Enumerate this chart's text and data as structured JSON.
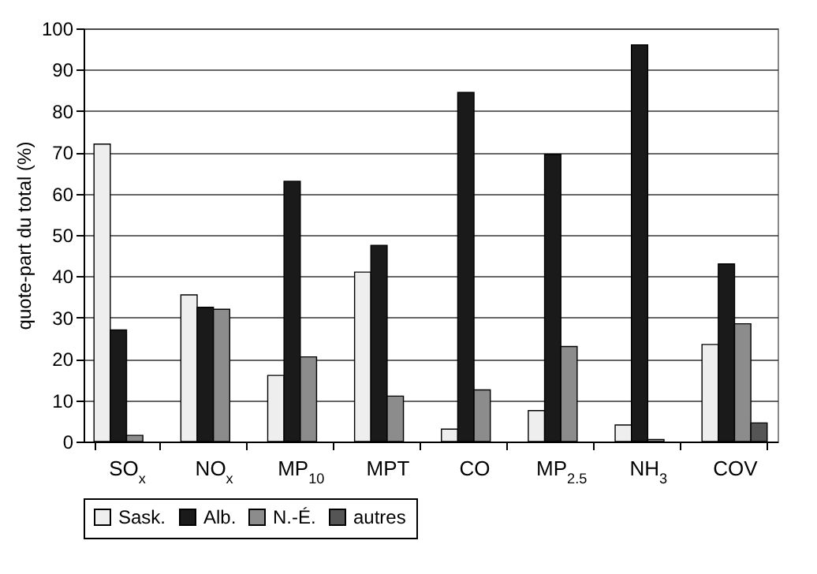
{
  "chart_data": {
    "type": "bar",
    "ylabel": "quote-part du total (%)",
    "categories": [
      "SO$_{x}$",
      "NO$_{x}$",
      "MP$_{10}$",
      "MPT",
      "CO",
      "MP$_{2.5}$",
      "NH$_{3}$",
      "COV"
    ],
    "series": [
      {
        "name": "Sask.",
        "color": "#eeeeee",
        "values": [
          72,
          35.5,
          16,
          41,
          3,
          7.5,
          4,
          23.5
        ]
      },
      {
        "name": "Alb.",
        "color": "#1a1a1a",
        "values": [
          27,
          32.5,
          63,
          47.5,
          84.5,
          69.5,
          96,
          43
        ]
      },
      {
        "name": "N.-É.",
        "color": "#8c8c8c",
        "values": [
          1.5,
          32,
          20.5,
          11,
          12.5,
          23,
          0.5,
          28.5
        ]
      },
      {
        "name": "autres",
        "color": "#555555",
        "values": [
          null,
          null,
          null,
          null,
          null,
          null,
          null,
          4.5
        ]
      }
    ],
    "ylim": [
      0,
      100
    ],
    "yticks": [
      0,
      10,
      20,
      30,
      40,
      50,
      60,
      70,
      80,
      90,
      100
    ],
    "grid": "y",
    "legend": "bottom"
  }
}
